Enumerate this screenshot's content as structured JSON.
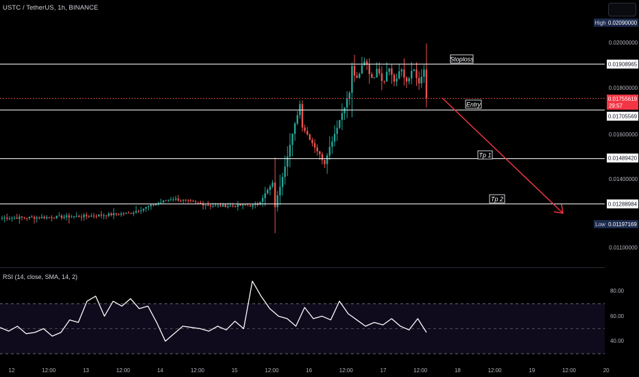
{
  "header": {
    "symbol_title": "USTC / TetherUS, 1h, BINANCE"
  },
  "colors": {
    "up": "#26a69a",
    "down": "#ef5350",
    "background": "#000000",
    "axis_text": "#b2b5be",
    "rsi_line": "#ffffff",
    "arrow": "#f23645"
  },
  "price_axis": {
    "high_tag": "High",
    "high_value": "0.02090000",
    "low_tag": "Low",
    "low_value": "0.01197169",
    "current_price": "0.01755619",
    "countdown": "29:57",
    "ticks": [
      {
        "label": "0.02000000",
        "value": 0.02
      },
      {
        "label": "0.01800000",
        "value": 0.018
      },
      {
        "label": "0.01600000",
        "value": 0.016
      },
      {
        "label": "0.01400000",
        "value": 0.014
      },
      {
        "label": "0.01100000",
        "value": 0.011
      }
    ]
  },
  "levels": [
    {
      "name": "Stoploss",
      "value": 0.01908965,
      "label": "0.01908965"
    },
    {
      "name": "Entry",
      "value": 0.01705569,
      "label": "0.01705569"
    },
    {
      "name": "Tp 1",
      "value": 0.0148942,
      "label": "0.01489420"
    },
    {
      "name": "Tp 2",
      "value": 0.01288984,
      "label": "0.01288984"
    }
  ],
  "rsi": {
    "legend": "RSI (14, close, SMA, 14, 2)",
    "ticks": [
      {
        "label": "80.00",
        "value": 80
      },
      {
        "label": "60.00",
        "value": 60
      },
      {
        "label": "40.00",
        "value": 40
      }
    ],
    "band": [
      30,
      70
    ],
    "mid": 50
  },
  "time_axis": {
    "labels": [
      "12",
      "12:00",
      "13",
      "12:00",
      "14",
      "12:00",
      "15",
      "12:00",
      "16",
      "12:00",
      "17",
      "12:00",
      "18",
      "12:00",
      "19",
      "12:00",
      "20"
    ]
  },
  "chart_data": {
    "type": "candlestick",
    "title": "USTC / TetherUS, 1h, BINANCE",
    "xlabel": "",
    "ylabel": "",
    "ylim": [
      0.0108,
      0.0218
    ],
    "x": [
      "12 12:00",
      "13 00:00",
      "13 12:00",
      "14 00:00",
      "14 12:00",
      "15 00:00",
      "15 12:00",
      "16 00:00",
      "16 12:00",
      "17 00:00",
      "17 12:00"
    ],
    "close": [
      0.0123,
      0.01232,
      0.01238,
      0.0125,
      0.01315,
      0.01282,
      0.01285,
      0.0154,
      0.0162,
      0.0185,
      0.01756
    ],
    "series": [
      {
        "name": "",
        "values": [
          0.0123,
          0.01232,
          0.01238,
          0.0125,
          0.01315,
          0.01282,
          0.01285,
          0.0154,
          0.0162,
          0.0185,
          0.01756
        ]
      }
    ],
    "annotations": [
      "Stoploss",
      "Entry",
      "Tp 1",
      "Tp 2"
    ],
    "rsi_values": [
      51,
      48,
      52,
      46,
      47,
      50,
      44,
      47,
      57,
      55,
      72,
      76,
      60,
      72,
      68,
      74,
      66,
      68,
      55,
      40,
      46,
      52,
      51,
      50,
      48,
      52,
      49,
      56,
      50,
      88,
      76,
      66,
      60,
      58,
      52,
      67,
      58,
      60,
      57,
      72,
      62,
      57,
      52,
      55,
      53,
      58,
      52,
      49,
      58,
      47
    ]
  }
}
